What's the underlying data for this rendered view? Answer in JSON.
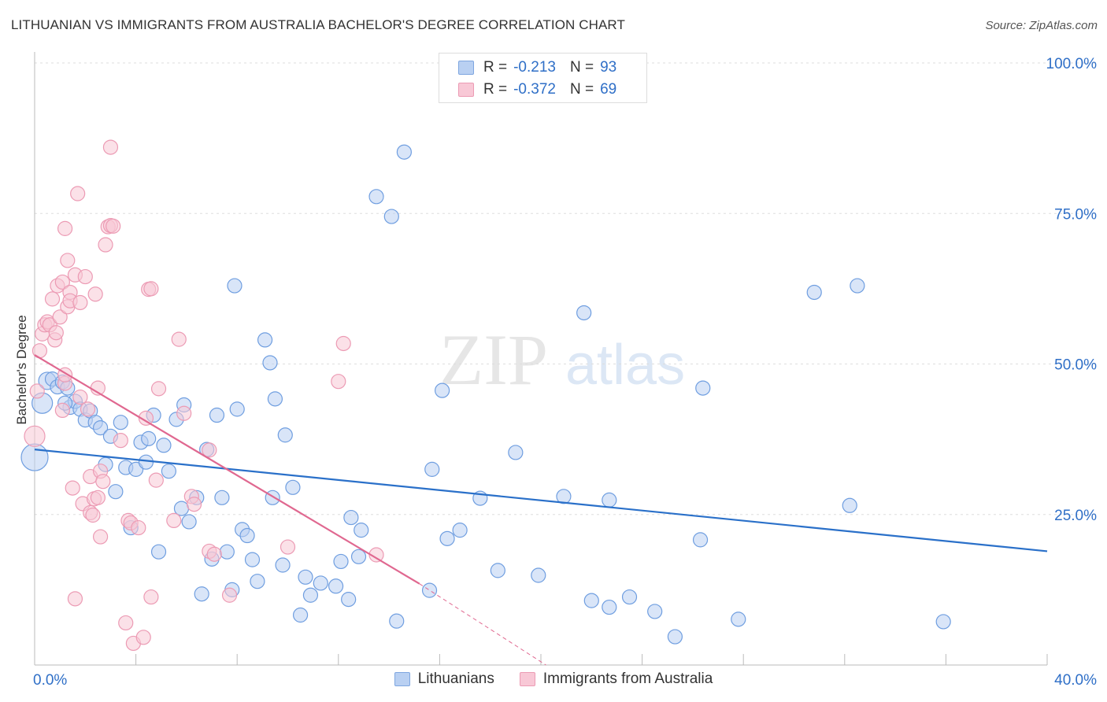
{
  "header": {
    "title": "LITHUANIAN VS IMMIGRANTS FROM AUSTRALIA BACHELOR'S DEGREE CORRELATION CHART",
    "source": "Source: ZipAtlas.com"
  },
  "legend": {
    "r_label": "R =",
    "n_label": "N =",
    "rows": [
      {
        "r": "-0.213",
        "n": "93"
      },
      {
        "r": "-0.372",
        "n": "69"
      }
    ]
  },
  "watermark": {
    "zip": "ZIP",
    "atlas": "atlas"
  },
  "colors": {
    "blue_fill": "#b9d0f2",
    "blue_stroke": "#6f9ee0",
    "blue_line": "#2a70c9",
    "pink_fill": "#f8c8d6",
    "pink_stroke": "#ec9bb4",
    "pink_line": "#e06890",
    "tick_blue": "#2f6fc7",
    "grid": "#dddddd"
  },
  "chart_data": {
    "type": "scatter",
    "title": "LITHUANIAN VS IMMIGRANTS FROM AUSTRALIA BACHELOR'S DEGREE CORRELATION CHART",
    "xlabel": "",
    "ylabel": "Bachelor's Degree",
    "xlim": [
      0,
      40
    ],
    "ylim": [
      0,
      100
    ],
    "x_tick_labels": [
      "0.0%",
      "40.0%"
    ],
    "y_ticks": [
      25,
      50,
      75,
      100
    ],
    "y_tick_labels": [
      "25.0%",
      "50.0%",
      "75.0%",
      "100.0%"
    ],
    "grid": true,
    "legend_position": "top-center",
    "series": [
      {
        "name": "Lithuanians",
        "r": -0.213,
        "n": 93,
        "trend": {
          "x": [
            0,
            40
          ],
          "y": [
            35.8,
            18.9
          ]
        },
        "points": [
          {
            "x": 0.0,
            "y": 34.5,
            "s": 3
          },
          {
            "x": 0.3,
            "y": 43.5,
            "s": 2
          },
          {
            "x": 0.5,
            "y": 47.2,
            "s": 1
          },
          {
            "x": 0.7,
            "y": 47.5
          },
          {
            "x": 0.9,
            "y": 46.2
          },
          {
            "x": 1.1,
            "y": 47.0
          },
          {
            "x": 1.3,
            "y": 46.0
          },
          {
            "x": 1.4,
            "y": 42.8
          },
          {
            "x": 1.6,
            "y": 43.8
          },
          {
            "x": 1.8,
            "y": 42.5
          },
          {
            "x": 2.0,
            "y": 40.7
          },
          {
            "x": 2.2,
            "y": 42.2
          },
          {
            "x": 2.4,
            "y": 40.3
          },
          {
            "x": 2.6,
            "y": 39.4
          },
          {
            "x": 2.8,
            "y": 33.3
          },
          {
            "x": 3.0,
            "y": 38.0
          },
          {
            "x": 3.2,
            "y": 28.8
          },
          {
            "x": 3.4,
            "y": 40.3
          },
          {
            "x": 3.6,
            "y": 32.8
          },
          {
            "x": 3.8,
            "y": 22.8
          },
          {
            "x": 4.0,
            "y": 32.5
          },
          {
            "x": 4.2,
            "y": 37.0
          },
          {
            "x": 4.4,
            "y": 33.7
          },
          {
            "x": 4.5,
            "y": 37.6
          },
          {
            "x": 4.7,
            "y": 41.5
          },
          {
            "x": 4.9,
            "y": 18.8
          },
          {
            "x": 5.1,
            "y": 36.5
          },
          {
            "x": 5.3,
            "y": 32.2
          },
          {
            "x": 5.6,
            "y": 40.8
          },
          {
            "x": 5.8,
            "y": 26.0
          },
          {
            "x": 5.9,
            "y": 43.2
          },
          {
            "x": 6.1,
            "y": 23.8
          },
          {
            "x": 6.4,
            "y": 27.8
          },
          {
            "x": 6.6,
            "y": 11.8
          },
          {
            "x": 6.8,
            "y": 35.8
          },
          {
            "x": 7.0,
            "y": 17.6
          },
          {
            "x": 7.2,
            "y": 41.5
          },
          {
            "x": 7.4,
            "y": 27.8
          },
          {
            "x": 7.6,
            "y": 18.8
          },
          {
            "x": 7.8,
            "y": 12.5
          },
          {
            "x": 7.9,
            "y": 63.0
          },
          {
            "x": 8.0,
            "y": 42.5
          },
          {
            "x": 8.2,
            "y": 22.5
          },
          {
            "x": 8.4,
            "y": 21.5
          },
          {
            "x": 8.6,
            "y": 17.5
          },
          {
            "x": 8.8,
            "y": 13.9
          },
          {
            "x": 9.1,
            "y": 54.0
          },
          {
            "x": 9.3,
            "y": 50.2
          },
          {
            "x": 9.4,
            "y": 27.8
          },
          {
            "x": 9.5,
            "y": 44.2
          },
          {
            "x": 9.8,
            "y": 16.6
          },
          {
            "x": 9.9,
            "y": 38.2
          },
          {
            "x": 10.2,
            "y": 29.5
          },
          {
            "x": 10.5,
            "y": 8.3
          },
          {
            "x": 10.7,
            "y": 14.6
          },
          {
            "x": 10.9,
            "y": 11.6
          },
          {
            "x": 11.3,
            "y": 13.6
          },
          {
            "x": 11.9,
            "y": 13.1
          },
          {
            "x": 12.1,
            "y": 17.2
          },
          {
            "x": 12.4,
            "y": 10.9
          },
          {
            "x": 12.5,
            "y": 24.5
          },
          {
            "x": 12.8,
            "y": 18.0
          },
          {
            "x": 12.9,
            "y": 22.4
          },
          {
            "x": 13.5,
            "y": 77.8
          },
          {
            "x": 14.1,
            "y": 74.5
          },
          {
            "x": 14.3,
            "y": 7.3
          },
          {
            "x": 14.6,
            "y": 85.2
          },
          {
            "x": 15.6,
            "y": 12.4
          },
          {
            "x": 15.7,
            "y": 32.5
          },
          {
            "x": 16.1,
            "y": 45.6
          },
          {
            "x": 16.3,
            "y": 21.0
          },
          {
            "x": 16.8,
            "y": 22.4
          },
          {
            "x": 17.6,
            "y": 27.7
          },
          {
            "x": 18.3,
            "y": 15.7
          },
          {
            "x": 19.0,
            "y": 35.3
          },
          {
            "x": 19.9,
            "y": 14.9
          },
          {
            "x": 20.9,
            "y": 28.0
          },
          {
            "x": 21.7,
            "y": 58.5
          },
          {
            "x": 22.0,
            "y": 10.7
          },
          {
            "x": 22.7,
            "y": 27.4
          },
          {
            "x": 22.7,
            "y": 9.6
          },
          {
            "x": 23.5,
            "y": 11.3
          },
          {
            "x": 24.5,
            "y": 8.9
          },
          {
            "x": 25.3,
            "y": 4.7
          },
          {
            "x": 26.3,
            "y": 20.8
          },
          {
            "x": 26.4,
            "y": 46.0
          },
          {
            "x": 27.8,
            "y": 7.6
          },
          {
            "x": 30.8,
            "y": 61.9
          },
          {
            "x": 32.2,
            "y": 26.5
          },
          {
            "x": 32.5,
            "y": 63.0
          },
          {
            "x": 35.9,
            "y": 7.2
          },
          {
            "x": 1.2,
            "y": 43.5
          }
        ]
      },
      {
        "name": "Immigrants from Australia",
        "r": -0.372,
        "n": 69,
        "trend": {
          "x": [
            0,
            15.2
          ],
          "y": [
            51.5,
            13.5
          ]
        },
        "trend_extension": {
          "x": [
            15.2,
            20.2
          ],
          "y": [
            13.5,
            0
          ]
        },
        "points": [
          {
            "x": 0.0,
            "y": 38.0,
            "s": 2
          },
          {
            "x": 0.1,
            "y": 45.5
          },
          {
            "x": 0.2,
            "y": 52.2
          },
          {
            "x": 0.3,
            "y": 55.0
          },
          {
            "x": 0.4,
            "y": 56.5
          },
          {
            "x": 0.5,
            "y": 57.0
          },
          {
            "x": 0.6,
            "y": 56.5
          },
          {
            "x": 0.7,
            "y": 60.8
          },
          {
            "x": 0.8,
            "y": 54.0
          },
          {
            "x": 0.85,
            "y": 55.2
          },
          {
            "x": 0.9,
            "y": 63.0
          },
          {
            "x": 1.0,
            "y": 57.8
          },
          {
            "x": 1.1,
            "y": 63.6
          },
          {
            "x": 1.1,
            "y": 42.3
          },
          {
            "x": 1.2,
            "y": 46.8
          },
          {
            "x": 1.2,
            "y": 48.2
          },
          {
            "x": 1.2,
            "y": 72.5
          },
          {
            "x": 1.3,
            "y": 67.2
          },
          {
            "x": 1.3,
            "y": 59.5
          },
          {
            "x": 1.4,
            "y": 61.9
          },
          {
            "x": 1.4,
            "y": 60.5
          },
          {
            "x": 1.5,
            "y": 29.4
          },
          {
            "x": 1.6,
            "y": 64.8
          },
          {
            "x": 1.6,
            "y": 11.0
          },
          {
            "x": 1.7,
            "y": 78.3
          },
          {
            "x": 1.8,
            "y": 44.5
          },
          {
            "x": 1.8,
            "y": 60.2
          },
          {
            "x": 1.9,
            "y": 26.8
          },
          {
            "x": 2.0,
            "y": 64.5
          },
          {
            "x": 2.1,
            "y": 42.5
          },
          {
            "x": 2.2,
            "y": 31.3
          },
          {
            "x": 2.2,
            "y": 25.3
          },
          {
            "x": 2.3,
            "y": 24.9
          },
          {
            "x": 2.35,
            "y": 27.6
          },
          {
            "x": 2.4,
            "y": 61.6
          },
          {
            "x": 2.5,
            "y": 27.8
          },
          {
            "x": 2.5,
            "y": 46.0
          },
          {
            "x": 2.6,
            "y": 32.2
          },
          {
            "x": 2.6,
            "y": 21.3
          },
          {
            "x": 2.7,
            "y": 30.5
          },
          {
            "x": 2.8,
            "y": 69.8
          },
          {
            "x": 2.9,
            "y": 72.8
          },
          {
            "x": 3.0,
            "y": 73.0
          },
          {
            "x": 3.0,
            "y": 86.0
          },
          {
            "x": 3.1,
            "y": 72.9
          },
          {
            "x": 3.4,
            "y": 37.3
          },
          {
            "x": 3.6,
            "y": 7.0
          },
          {
            "x": 3.7,
            "y": 24.0
          },
          {
            "x": 3.8,
            "y": 23.6
          },
          {
            "x": 3.9,
            "y": 3.6
          },
          {
            "x": 4.1,
            "y": 22.8
          },
          {
            "x": 4.3,
            "y": 4.6
          },
          {
            "x": 4.4,
            "y": 41.0
          },
          {
            "x": 4.5,
            "y": 62.4
          },
          {
            "x": 4.6,
            "y": 62.5
          },
          {
            "x": 4.6,
            "y": 11.3
          },
          {
            "x": 4.8,
            "y": 30.7
          },
          {
            "x": 4.9,
            "y": 45.9
          },
          {
            "x": 5.5,
            "y": 24.0
          },
          {
            "x": 5.7,
            "y": 54.1
          },
          {
            "x": 5.9,
            "y": 41.8
          },
          {
            "x": 6.2,
            "y": 28.0
          },
          {
            "x": 6.3,
            "y": 26.7
          },
          {
            "x": 6.9,
            "y": 35.7
          },
          {
            "x": 6.9,
            "y": 18.9
          },
          {
            "x": 7.1,
            "y": 18.4
          },
          {
            "x": 7.7,
            "y": 11.6
          },
          {
            "x": 10.0,
            "y": 19.6
          },
          {
            "x": 12.0,
            "y": 47.1
          },
          {
            "x": 12.2,
            "y": 53.4
          },
          {
            "x": 13.5,
            "y": 18.3
          }
        ]
      }
    ]
  },
  "bottom_legend": [
    "Lithuanians",
    "Immigrants from Australia"
  ]
}
